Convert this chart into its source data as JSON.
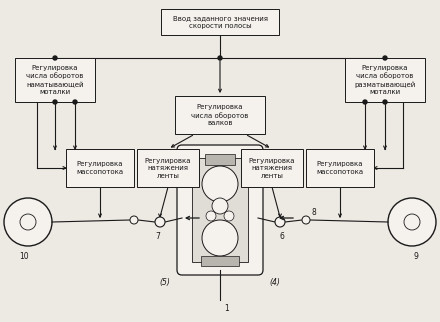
{
  "bg_color": "#ede9e3",
  "line_color": "#1a1a1a",
  "box_fill": "#f5f2ee",
  "font_size_box": 5.0,
  "font_size_label": 5.5,
  "title_top": "Ввод заданного значения\nскорости полосы",
  "box_top_left": "Регулировка\nчисла оборотов\nнаматывающей\nмоталки",
  "box_top_right": "Регулировка\nчисла оборотов\nразматывающей\nмоталки",
  "box_center": "Регулировка\nчисла оборотов\nвалков",
  "box_ml1": "Регулировка\nмассопотока",
  "box_ml2": "Регулировка\nнатяжения\nленты",
  "box_mr1": "Регулировка\nнатяжения\nленты",
  "box_mr2": "Регулировка\nмассопотока",
  "label_5": "(5)",
  "label_4": "(4)",
  "label_1": "1",
  "label_6": "6",
  "label_7": "7",
  "label_8": "8",
  "label_9": "9",
  "label_10": "10"
}
